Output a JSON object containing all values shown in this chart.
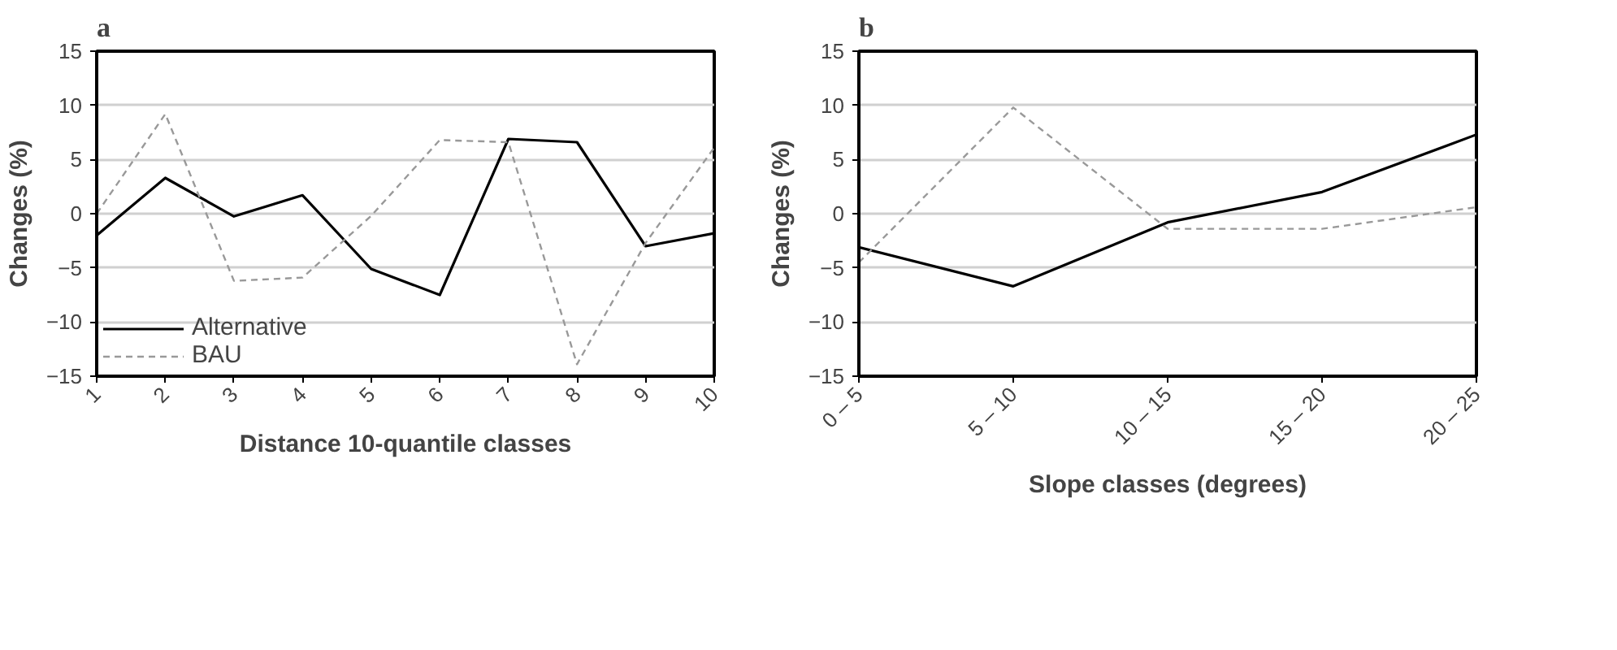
{
  "chart_data": [
    {
      "type": "line",
      "title": "a",
      "xlabel": "Distance 10-quantile classes",
      "ylabel": "Changes (%)",
      "categories": [
        "1",
        "2",
        "3",
        "4",
        "5",
        "6",
        "7",
        "8",
        "9",
        "10"
      ],
      "series": [
        {
          "name": "Alternative",
          "color": "#000000",
          "line_style": "solid",
          "values": [
            -2.0,
            3.3,
            -0.25,
            1.7,
            -5.1,
            -7.5,
            6.9,
            6.6,
            -3.0,
            -1.8
          ]
        },
        {
          "name": "BAU",
          "color": "#999999",
          "line_style": "dashed",
          "values": [
            0.0,
            9.2,
            -6.2,
            -5.9,
            -0.2,
            6.8,
            6.6,
            -13.9,
            -2.7,
            6.1
          ]
        }
      ],
      "ylim": [
        -15,
        15
      ],
      "yticks": [
        -15,
        -10,
        -5,
        0,
        5,
        10,
        15
      ],
      "grid": "y",
      "legend": "bottom left"
    },
    {
      "type": "line",
      "title": "b",
      "xlabel": "Slope classes (degrees)",
      "ylabel": "Changes (%)",
      "categories": [
        "0 – 5",
        "5 – 10",
        "10 – 15",
        "15 – 20",
        "20 – 25"
      ],
      "series": [
        {
          "color": "#000000",
          "line_style": "solid",
          "values": [
            -3.1,
            -6.7,
            -0.8,
            2.0,
            7.3
          ]
        },
        {
          "color": "#999999",
          "line_style": "dashed",
          "values": [
            -4.5,
            9.8,
            -1.4,
            -1.4,
            0.6
          ]
        }
      ],
      "ylim": [
        -15,
        15
      ],
      "yticks": [
        -15,
        -10,
        -5,
        0,
        5,
        10,
        15
      ],
      "grid": "y"
    }
  ]
}
